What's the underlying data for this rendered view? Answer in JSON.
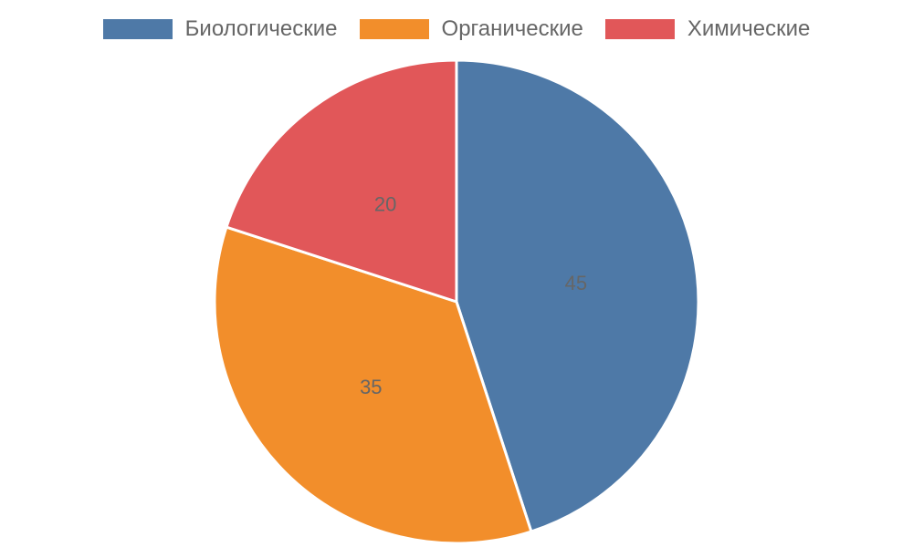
{
  "chart_data": {
    "type": "pie",
    "categories": [
      "Биологические",
      "Органические",
      "Химические"
    ],
    "values": [
      45,
      35,
      20
    ],
    "colors": [
      "#4e79a7",
      "#f28e2b",
      "#e15759"
    ],
    "data_labels": [
      "45",
      "35",
      "20"
    ],
    "legend": "top",
    "start_angle": "top, clockwise",
    "title": ""
  }
}
